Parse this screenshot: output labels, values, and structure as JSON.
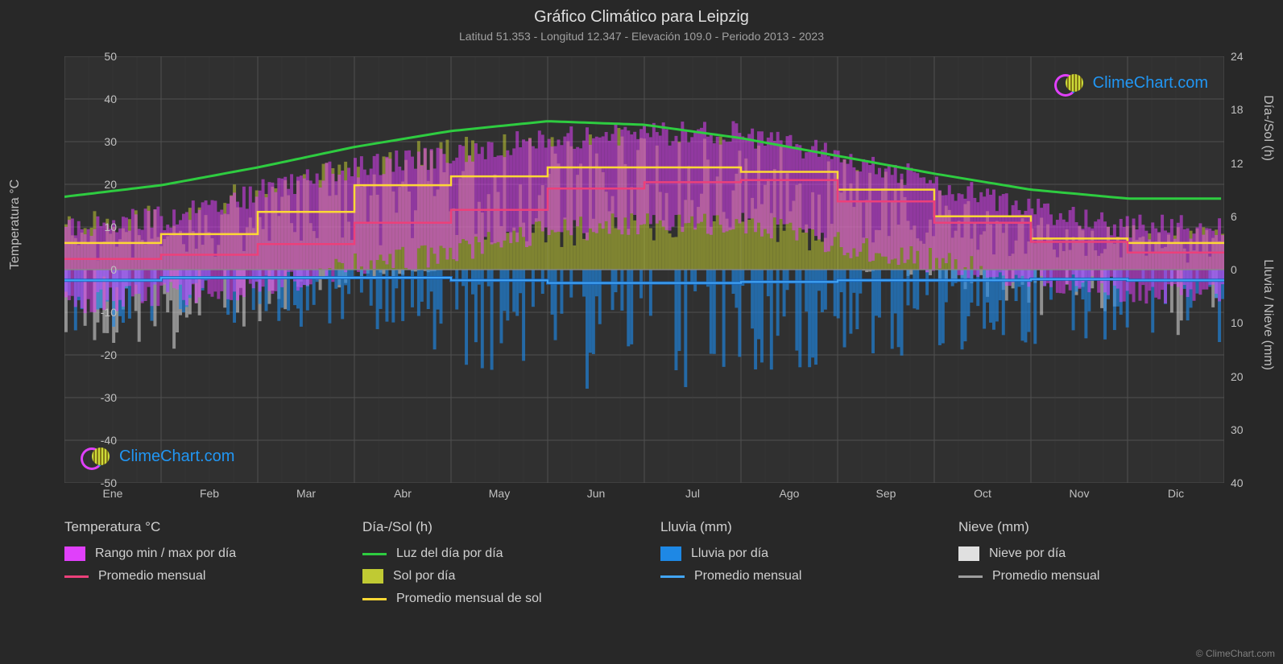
{
  "title": "Gráfico Climático para Leipzig",
  "subtitle": "Latitud 51.353 - Longitud 12.347 - Elevación 109.0 - Periodo 2013 - 2023",
  "watermark_text": "ClimeChart.com",
  "copyright": "© ClimeChart.com",
  "axes": {
    "y_left_label": "Temperatura °C",
    "y_right_label1": "Día-/Sol (h)",
    "y_right_label2": "Lluvia / Nieve (mm)",
    "y_left_min": -50,
    "y_left_max": 50,
    "y_left_step": 10,
    "y_left_ticks": [
      50,
      40,
      30,
      20,
      10,
      0,
      -10,
      -20,
      -30,
      -40,
      -50
    ],
    "y_right1_ticks": [
      24,
      18,
      12,
      6,
      0
    ],
    "y_right1_positions": [
      50,
      37.5,
      25,
      12.5,
      0
    ],
    "y_right2_ticks": [
      0,
      10,
      20,
      30,
      40
    ],
    "y_right2_positions": [
      0,
      -12.5,
      -25,
      -37.5,
      -50
    ],
    "months": [
      "Ene",
      "Feb",
      "Mar",
      "Abr",
      "May",
      "Jun",
      "Jul",
      "Ago",
      "Sep",
      "Oct",
      "Nov",
      "Dic"
    ]
  },
  "chart": {
    "background_color": "#303030",
    "grid_color": "#505050",
    "grid_minor_color": "#404040",
    "colors": {
      "temp_range": "#e040fb",
      "temp_avg": "#ec407a",
      "daylight": "#2ecc40",
      "sun_bars": "#c0ca33",
      "sun_avg": "#fdd835",
      "rain_bars": "#1e88e5",
      "rain_avg": "#42a5f5",
      "rain_avg_dark": "#1565c0",
      "snow_bars": "#e0e0e0",
      "snow_avg": "#9e9e9e"
    },
    "daylight_h": [
      8.2,
      9.5,
      11.5,
      13.8,
      15.6,
      16.7,
      16.3,
      14.8,
      12.8,
      10.8,
      9.0,
      8.0
    ],
    "sun_avg_h": [
      3.0,
      4.0,
      6.5,
      9.5,
      10.5,
      11.5,
      11.5,
      11.0,
      9.0,
      6.0,
      3.5,
      3.0
    ],
    "temp_avg_c": [
      2.5,
      3.5,
      6.0,
      11.0,
      14.0,
      19.0,
      20.5,
      21.0,
      16.0,
      11.0,
      6.5,
      4.0
    ],
    "rain_avg_mm": [
      2.0,
      1.5,
      1.5,
      1.5,
      2.0,
      2.5,
      2.5,
      2.3,
      2.0,
      2.0,
      1.8,
      2.0
    ],
    "temp_range_daily": {
      "min": [
        -8,
        -6,
        -4,
        1,
        4,
        9,
        11,
        11,
        6,
        2,
        -2,
        -5
      ],
      "max": [
        10,
        12,
        18,
        24,
        27,
        31,
        32,
        32,
        27,
        20,
        14,
        10
      ]
    },
    "sun_daily_max": [
      6,
      8,
      11,
      14,
      15,
      16,
      16,
      15,
      13,
      9,
      6,
      5
    ],
    "rain_daily_max_mm": [
      12,
      10,
      10,
      12,
      18,
      22,
      24,
      22,
      18,
      16,
      14,
      14
    ],
    "snow_daily_max_mm": [
      18,
      16,
      10,
      2,
      0,
      0,
      0,
      0,
      0,
      2,
      8,
      14
    ]
  },
  "legend": {
    "temp": {
      "header": "Temperatura °C",
      "range": "Rango min / max por día",
      "avg": "Promedio mensual"
    },
    "daysun": {
      "header": "Día-/Sol (h)",
      "daylight": "Luz del día por día",
      "sun": "Sol por día",
      "sun_avg": "Promedio mensual de sol"
    },
    "rain": {
      "header": "Lluvia (mm)",
      "daily": "Lluvia por día",
      "avg": "Promedio mensual"
    },
    "snow": {
      "header": "Nieve (mm)",
      "daily": "Nieve por día",
      "avg": "Promedio mensual"
    }
  }
}
